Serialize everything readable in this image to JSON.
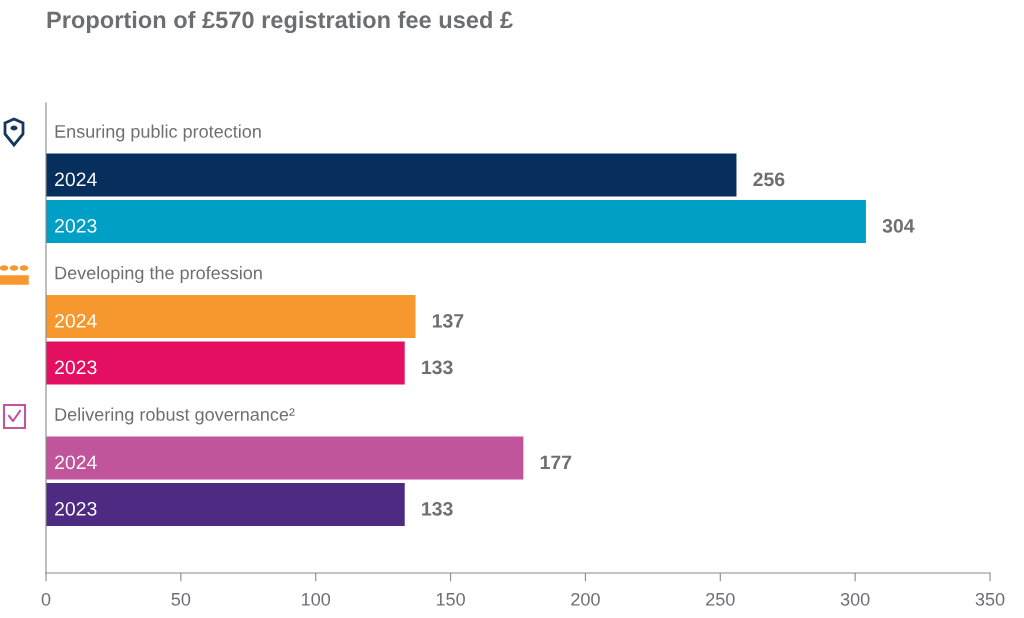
{
  "chart_data": {
    "type": "bar",
    "orientation": "horizontal",
    "title": "Proportion of £570 registration fee used £",
    "categories": [
      "Ensuring public protection",
      "Developing the profession",
      "Delivering robust governance²"
    ],
    "series": [
      {
        "name": "2024",
        "colors": [
          "#062f5e",
          "#f7982f",
          "#c0559b"
        ],
        "values": [
          256,
          137,
          177
        ]
      },
      {
        "name": "2023",
        "colors": [
          "#00a0c6",
          "#e50f61",
          "#4f2a83"
        ],
        "values": [
          304,
          133,
          133
        ]
      }
    ],
    "xlim": [
      0,
      350
    ],
    "xticks": [
      0,
      50,
      100,
      150,
      200,
      250,
      300,
      350
    ],
    "data_labels": true,
    "grid": false
  }
}
